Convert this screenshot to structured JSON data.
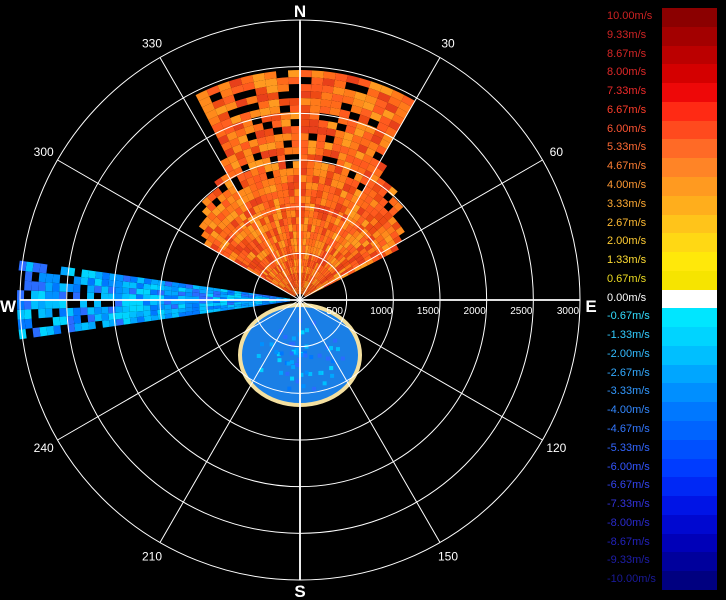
{
  "radar": {
    "cardinals": {
      "north": "N",
      "east": "E",
      "south": "S",
      "west": "W"
    },
    "bearings": [
      {
        "deg": 30,
        "label": "30"
      },
      {
        "deg": 60,
        "label": "60"
      },
      {
        "deg": 120,
        "label": "120"
      },
      {
        "deg": 150,
        "label": "150"
      },
      {
        "deg": 210,
        "label": "210"
      },
      {
        "deg": 240,
        "label": "240"
      },
      {
        "deg": 300,
        "label": "300"
      },
      {
        "deg": 330,
        "label": "330"
      }
    ],
    "range_labels": [
      "500",
      "1000",
      "1500",
      "2000",
      "2500",
      "3000"
    ]
  },
  "legend": {
    "entries": [
      {
        "label": "10.00m/s",
        "color": "#8b0000",
        "text": "#cc2222"
      },
      {
        "label": "9.33m/s",
        "color": "#a30000",
        "text": "#d02424"
      },
      {
        "label": "8.67m/s",
        "color": "#bb0000",
        "text": "#d62626"
      },
      {
        "label": "8.00m/s",
        "color": "#d40000",
        "text": "#e02828"
      },
      {
        "label": "7.33m/s",
        "color": "#ee0808",
        "text": "#ee2a2a"
      },
      {
        "label": "6.67m/s",
        "color": "#ff2a14",
        "text": "#ff3d2a"
      },
      {
        "label": "6.00m/s",
        "color": "#ff4a1e",
        "text": "#ff5533"
      },
      {
        "label": "5.33m/s",
        "color": "#ff6a26",
        "text": "#ff6a33"
      },
      {
        "label": "4.67m/s",
        "color": "#ff8426",
        "text": "#ff7f33"
      },
      {
        "label": "4.00m/s",
        "color": "#ff9a20",
        "text": "#ff9933"
      },
      {
        "label": "3.33m/s",
        "color": "#ffae1c",
        "text": "#ffaa33"
      },
      {
        "label": "2.67m/s",
        "color": "#ffc41a",
        "text": "#ffbb33"
      },
      {
        "label": "2.00m/s",
        "color": "#ffd814",
        "text": "#ffcc33"
      },
      {
        "label": "1.33m/s",
        "color": "#ffe80a",
        "text": "#ffdd33"
      },
      {
        "label": "0.67m/s",
        "color": "#f6e400",
        "text": "#eedd22"
      },
      {
        "label": "0.00m/s",
        "color": "#ffffff",
        "text": "#ffffff"
      },
      {
        "label": "-0.67m/s",
        "color": "#00e6ff",
        "text": "#33ddff"
      },
      {
        "label": "-1.33m/s",
        "color": "#00d4ff",
        "text": "#33ccff"
      },
      {
        "label": "-2.00m/s",
        "color": "#00bfff",
        "text": "#33bbff"
      },
      {
        "label": "-2.67m/s",
        "color": "#00a6ff",
        "text": "#33aaff"
      },
      {
        "label": "-3.33m/s",
        "color": "#008fff",
        "text": "#3399ff"
      },
      {
        "label": "-4.00m/s",
        "color": "#0078ff",
        "text": "#3388ff"
      },
      {
        "label": "-4.67m/s",
        "color": "#0064ff",
        "text": "#3377ff"
      },
      {
        "label": "-5.33m/s",
        "color": "#0050ff",
        "text": "#3366ff"
      },
      {
        "label": "-6.00m/s",
        "color": "#003cff",
        "text": "#3355ff"
      },
      {
        "label": "-6.67m/s",
        "color": "#0028f5",
        "text": "#3344ee"
      },
      {
        "label": "-7.33m/s",
        "color": "#0014e6",
        "text": "#3333dd"
      },
      {
        "label": "-8.00m/s",
        "color": "#0008d0",
        "text": "#2a2acc"
      },
      {
        "label": "-8.67m/s",
        "color": "#0000b8",
        "text": "#2222bb"
      },
      {
        "label": "-9.33m/s",
        "color": "#00009c",
        "text": "#1e1eaa"
      },
      {
        "label": "-10.00m/s",
        "color": "#000080",
        "text": "#1a1a99"
      }
    ]
  }
}
